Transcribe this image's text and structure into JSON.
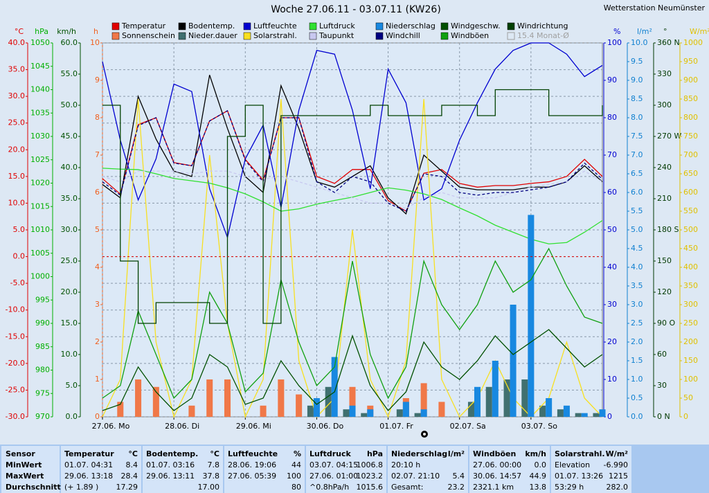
{
  "chart_data": {
    "type": "line",
    "title": "Woche 27.06.11 - 03.07.11 (KW26)",
    "station": "Wetterstation Neumünster",
    "legend_extra": "15.4 Monat-Ø",
    "xlim": [
      0,
      168
    ],
    "xticks": [
      {
        "value": 0,
        "label": "27.06. Mo"
      },
      {
        "value": 24,
        "label": "28.06. Di"
      },
      {
        "value": 48,
        "label": "29.06. Mi"
      },
      {
        "value": 72,
        "label": "30.06. Do"
      },
      {
        "value": 96,
        "label": "01.07. Fr"
      },
      {
        "value": 120,
        "label": "02.07. Sa"
      },
      {
        "value": 144,
        "label": "03.07. So"
      }
    ],
    "grid": true,
    "x": [
      0,
      6,
      12,
      18,
      24,
      30,
      36,
      42,
      48,
      54,
      60,
      66,
      72,
      78,
      84,
      90,
      96,
      102,
      108,
      114,
      120,
      126,
      132,
      138,
      144,
      150,
      156,
      162,
      168
    ],
    "axes": [
      {
        "label": "°C",
        "side": "left",
        "color": "#e00000",
        "lim": [
          -30,
          40
        ],
        "ticks": [
          {
            "value": -30,
            "label": "-30.0"
          },
          {
            "value": -25,
            "label": "-25.0"
          },
          {
            "value": -20,
            "label": "-20.0"
          },
          {
            "value": -15,
            "label": "-15.0"
          },
          {
            "value": -10,
            "label": "-10.0"
          },
          {
            "value": -5,
            "label": "-5.0"
          },
          {
            "value": 0,
            "label": "0.0"
          },
          {
            "value": 5,
            "label": "5.0"
          },
          {
            "value": 10,
            "label": "10.0"
          },
          {
            "value": 15,
            "label": "15.0"
          },
          {
            "value": 20,
            "label": "20.0"
          },
          {
            "value": 25,
            "label": "25.0"
          },
          {
            "value": 30,
            "label": "30.0"
          },
          {
            "value": 35,
            "label": "35.0"
          },
          {
            "value": 40,
            "label": "40.0"
          }
        ]
      },
      {
        "label": "hPa",
        "side": "left",
        "color": "#00b000",
        "lim": [
          970,
          1050
        ],
        "ticks": [
          970,
          975,
          980,
          985,
          990,
          995,
          1000,
          1005,
          1010,
          1015,
          1020,
          1025,
          1030,
          1035,
          1040,
          1045,
          1050
        ]
      },
      {
        "label": "km/h",
        "side": "left",
        "color": "#005000",
        "lim": [
          0,
          60
        ],
        "ticks": [
          {
            "value": 0,
            "label": "0.0"
          },
          {
            "value": 5,
            "label": "5.0"
          },
          {
            "value": 10,
            "label": "10.0"
          },
          {
            "value": 15,
            "label": "15.0"
          },
          {
            "value": 20,
            "label": "20.0"
          },
          {
            "value": 25,
            "label": "25.0"
          },
          {
            "value": 30,
            "label": "30.0"
          },
          {
            "value": 35,
            "label": "35.0"
          },
          {
            "value": 40,
            "label": "40.0"
          },
          {
            "value": 45,
            "label": "45.0"
          },
          {
            "value": 50,
            "label": "50.0"
          },
          {
            "value": 55,
            "label": "55.0"
          },
          {
            "value": 60,
            "label": "60.0"
          }
        ]
      },
      {
        "label": "h",
        "side": "left",
        "color": "#f06020",
        "lim": [
          0,
          10
        ],
        "ticks": [
          0,
          1,
          2,
          3,
          4,
          5,
          6,
          7,
          8,
          9,
          10
        ]
      },
      {
        "label": "%",
        "side": "right",
        "color": "#0000d0",
        "lim": [
          0,
          100
        ],
        "ticks": [
          0,
          10,
          20,
          30,
          40,
          50,
          60,
          70,
          80,
          90,
          100
        ]
      },
      {
        "label": "l/m²",
        "side": "right",
        "color": "#1080d0",
        "lim": [
          0,
          10
        ],
        "ticks": [
          {
            "value": 0,
            "label": "0.0"
          },
          {
            "value": 0.5,
            "label": "0.5"
          },
          {
            "value": 1,
            "label": "1.0"
          },
          {
            "value": 1.5,
            "label": "1.5"
          },
          {
            "value": 2,
            "label": "2.0"
          },
          {
            "value": 2.5,
            "label": "2.5"
          },
          {
            "value": 3,
            "label": "3.0"
          },
          {
            "value": 3.5,
            "label": "3.5"
          },
          {
            "value": 4,
            "label": "4.0"
          },
          {
            "value": 4.5,
            "label": "4.5"
          },
          {
            "value": 5,
            "label": "5.0"
          },
          {
            "value": 5.5,
            "label": "5.5"
          },
          {
            "value": 6,
            "label": "6.0"
          },
          {
            "value": 6.5,
            "label": "6.5"
          },
          {
            "value": 7,
            "label": "7.0"
          },
          {
            "value": 7.5,
            "label": "7.5"
          },
          {
            "value": 8,
            "label": "8.0"
          },
          {
            "value": 8.5,
            "label": "8.5"
          },
          {
            "value": 9,
            "label": "9.0"
          },
          {
            "value": 9.5,
            "label": "9.5"
          },
          {
            "value": 10,
            "label": "10.0"
          }
        ]
      },
      {
        "label": "°",
        "side": "right",
        "color": "#003800",
        "lim": [
          0,
          360
        ],
        "ticks": [
          {
            "value": 0,
            "label": "0 N"
          },
          30,
          60,
          {
            "value": 90,
            "label": "90 O"
          },
          120,
          150,
          {
            "value": 180,
            "label": "180 S"
          },
          210,
          240,
          {
            "value": 270,
            "label": "270 W"
          },
          300,
          330,
          {
            "value": 360,
            "label": "360 N"
          }
        ]
      },
      {
        "label": "W/m²",
        "side": "right",
        "color": "#e0c000",
        "lim": [
          0,
          1000
        ],
        "ticks": [
          0,
          50,
          100,
          150,
          200,
          250,
          300,
          350,
          400,
          450,
          500,
          550,
          600,
          650,
          700,
          750,
          800,
          850,
          900,
          950,
          1000
        ]
      }
    ],
    "series": [
      {
        "name": "Temperatur",
        "color": "#e00000",
        "axis": "°C",
        "kind": "line",
        "values": [
          14.6,
          11.7,
          24.7,
          26,
          17.6,
          17,
          25.4,
          27.3,
          18.2,
          14.3,
          26,
          26,
          15,
          13.7,
          16.3,
          16.3,
          10.5,
          8.5,
          15.6,
          16.3,
          13.7,
          13,
          13.3,
          13.3,
          13.7,
          14,
          15,
          18.2,
          15
        ]
      },
      {
        "name": "Sonnenschein",
        "color": "#f07848",
        "axis": "h",
        "kind": "bar",
        "values": [
          0,
          0.4,
          1,
          0.8,
          0,
          0.3,
          1,
          1,
          0,
          0.3,
          1,
          0.6,
          0,
          0,
          0.8,
          0.3,
          0,
          0.5,
          0.9,
          0.4,
          0,
          0,
          0,
          0,
          0,
          0,
          0,
          0,
          0
        ]
      },
      {
        "name": "Bodentemp.",
        "color": "#000000",
        "axis": "°C",
        "kind": "line",
        "values": [
          13.5,
          11,
          30,
          22,
          16,
          15,
          34,
          24,
          15,
          12,
          32,
          24,
          14,
          13,
          15,
          17,
          11,
          8,
          19,
          16,
          13,
          12.5,
          12.5,
          12.5,
          13,
          13,
          14,
          17,
          14
        ]
      },
      {
        "name": "Nieder.dauer",
        "color": "#407070",
        "axis": "l/m²",
        "kind": "bar",
        "values": [
          0,
          0,
          0,
          0,
          0,
          0,
          0,
          0,
          0,
          0,
          0,
          0,
          0.3,
          0.8,
          0.2,
          0.1,
          0,
          0.2,
          0.1,
          0,
          0,
          0.4,
          0.8,
          1,
          1,
          0.3,
          0.2,
          0.1,
          0.1
        ]
      },
      {
        "name": "Luftfeuchte",
        "color": "#0000d0",
        "axis": "%",
        "kind": "line",
        "values": [
          95,
          74,
          58,
          69,
          89,
          87,
          61,
          48,
          69,
          78,
          56,
          82,
          98,
          97,
          82,
          61,
          93,
          84,
          58,
          61,
          74,
          84,
          93,
          98,
          100,
          100,
          97,
          91,
          94
        ]
      },
      {
        "name": "Solarstrahl.",
        "color": "#f8e020",
        "axis": "W/m²",
        "kind": "line",
        "values": [
          0,
          100,
          850,
          200,
          0,
          100,
          700,
          250,
          0,
          100,
          850,
          150,
          0,
          50,
          500,
          100,
          0,
          150,
          850,
          100,
          0,
          50,
          150,
          50,
          0,
          50,
          200,
          50,
          0
        ]
      },
      {
        "name": "Luftdruck",
        "color": "#30e030",
        "axis": "hPa",
        "kind": "line",
        "values": [
          1023.2,
          1023,
          1022.9,
          1022,
          1021,
          1020.5,
          1020,
          1019,
          1017.7,
          1016,
          1014,
          1014.5,
          1015.5,
          1016.3,
          1017,
          1018,
          1019,
          1018.5,
          1017.7,
          1016.5,
          1014.7,
          1013,
          1011,
          1009.5,
          1008,
          1007,
          1007.3,
          1009.5,
          1012
        ]
      },
      {
        "name": "Taupunkt",
        "color": "#c8c8f0",
        "axis": "°C",
        "kind": "dashed",
        "values": [
          15,
          14,
          16,
          16,
          16,
          15.5,
          16,
          16,
          15,
          14.5,
          15,
          14,
          13,
          12,
          11,
          10,
          10,
          9,
          11,
          12,
          11,
          11,
          11,
          12,
          13,
          13.5,
          14,
          16,
          14
        ]
      },
      {
        "name": "Niederschlag",
        "color": "#1888e0",
        "axis": "l/m²",
        "kind": "bar",
        "values": [
          0,
          0,
          0,
          0,
          0,
          0,
          0,
          0,
          0,
          0,
          0,
          0,
          0.5,
          1.6,
          0.3,
          0.2,
          0,
          0.4,
          0.2,
          0,
          0,
          0.8,
          1.5,
          3,
          5.4,
          0.5,
          0.3,
          0.1,
          0.2
        ]
      },
      {
        "name": "Windchill",
        "color": "#000080",
        "axis": "°C",
        "kind": "dashed",
        "values": [
          14,
          11.5,
          24.5,
          26,
          17.5,
          17,
          25.4,
          27.3,
          18,
          14,
          26,
          26,
          14,
          12,
          15,
          14,
          10,
          8.5,
          15.5,
          15,
          12,
          11.5,
          12,
          12,
          12.5,
          13,
          14,
          17.5,
          14.5
        ]
      },
      {
        "name": "Windgeschw.",
        "color": "#005000",
        "axis": "km/h",
        "kind": "line",
        "values": [
          1,
          2,
          8,
          4,
          1,
          3,
          10,
          8,
          2,
          3,
          9,
          5,
          2,
          4,
          13,
          5,
          1,
          4,
          12,
          8,
          6,
          9,
          13,
          10,
          12,
          14,
          11,
          8,
          10
        ]
      },
      {
        "name": "Windböen",
        "color": "#10a010",
        "axis": "km/h",
        "kind": "line",
        "values": [
          3,
          5,
          17,
          10,
          3,
          6,
          20,
          15,
          4,
          7,
          22,
          12,
          5,
          8,
          25,
          10,
          3,
          8,
          25,
          18,
          14,
          18,
          25,
          20,
          22,
          27,
          21,
          16,
          15
        ]
      },
      {
        "name": "Windrichtung",
        "color": "#004000",
        "axis": "°",
        "kind": "step",
        "values": [
          300,
          150,
          90,
          110,
          110,
          110,
          90,
          270,
          300,
          90,
          290,
          290,
          290,
          290,
          290,
          300,
          290,
          290,
          290,
          300,
          300,
          290,
          315,
          315,
          315,
          290,
          290,
          290,
          300
        ]
      }
    ]
  },
  "table": {
    "corner": "Sensor",
    "row_labels": [
      "MinWert",
      "MaxWert",
      "Durchschnitt"
    ],
    "blocks": [
      {
        "title": "Temperatur",
        "unit": "°C",
        "rows": [
          {
            "l": "01.07. 04:31",
            "r": "8.4"
          },
          {
            "l": "29.06. 13:18",
            "r": "28.4"
          },
          {
            "l": "(+ 1.89 )",
            "r": "17.29"
          }
        ]
      },
      {
        "title": "Bodentemp.",
        "unit": "°C",
        "rows": [
          {
            "l": "01.07. 03:16",
            "r": "7.8"
          },
          {
            "l": "29.06. 13:11",
            "r": "37.8"
          },
          {
            "r": "17.00"
          }
        ]
      },
      {
        "title": "Luftfeuchte",
        "unit": "%",
        "rows": [
          {
            "l": "28.06. 19:06",
            "r": "44"
          },
          {
            "l": "27.06. 05:39",
            "r": "100"
          },
          {
            "r": "80"
          }
        ]
      },
      {
        "title": "Luftdruck",
        "unit": "hPa",
        "rows": [
          {
            "l": "03.07. 04:15",
            "r": "1006.8"
          },
          {
            "l": "27.06. 01:00",
            "r": "1023.2"
          },
          {
            "l": "^0.8hPa/h",
            "r": "1015.6"
          }
        ]
      },
      {
        "title": "Niederschlag",
        "unit": "l/m²",
        "rows": [
          {
            "l": "20:10 h"
          },
          {
            "l": "02.07. 21:10",
            "r": "5.4"
          },
          {
            "l": "Gesamt:",
            "r": "23.2"
          }
        ]
      },
      {
        "title": "Windböen",
        "unit": "km/h",
        "rows": [
          {
            "l": "27.06. 00:00",
            "r": "0.0"
          },
          {
            "l": "30.06. 14:57",
            "r": "44.9"
          },
          {
            "l": "2321.1 km",
            "r": "13.8"
          }
        ]
      },
      {
        "title": "Solarstrahl.",
        "unit": "W/m²",
        "rows": [
          {
            "l": "Elevation",
            "r": "-6.990"
          },
          {
            "l": "01.07. 13:26",
            "r": "1215"
          },
          {
            "l": "53:29 h",
            "r": "282.0"
          }
        ]
      }
    ]
  }
}
